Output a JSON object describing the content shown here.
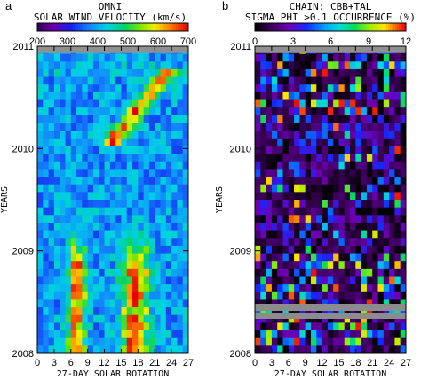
{
  "panels": [
    {
      "letter": "a",
      "title_line1": "OMNI",
      "title_line2": "SOLAR WIND VELOCITY (km/s)",
      "colorbar_ticks": [
        "200",
        "300",
        "400",
        "500",
        "600",
        "700"
      ],
      "ylabel": "YEARS",
      "xlabel": "27-DAY SOLAR ROTATION"
    },
    {
      "letter": "b",
      "title_line1": "CHAIN: CBB+TAL",
      "title_line2": "SIGMA PHI >0.1 OCCURRENCE (%)",
      "colorbar_ticks": [
        "0",
        "3",
        "6",
        "9",
        "12"
      ],
      "ylabel": "YEARS",
      "xlabel": "27-DAY SOLAR ROTATION"
    }
  ],
  "chart_data": [
    {
      "type": "heatmap",
      "title": "OMNI SOLAR WIND VELOCITY (km/s)",
      "xlabel": "27-DAY SOLAR ROTATION",
      "ylabel": "YEARS",
      "x_ticks": [
        "0",
        "3",
        "6",
        "9",
        "12",
        "15",
        "18",
        "21",
        "24",
        "27"
      ],
      "y_ticks": [
        "2008",
        "2009",
        "2010",
        "2011"
      ],
      "x_range": [
        0,
        27
      ],
      "y_range": [
        2008,
        2011
      ],
      "color_range": [
        200,
        700
      ],
      "colormap": "rainbow (purple-blue-cyan-green-yellow-red)",
      "pattern": "mostly 300-450 km/s; high-speed streams (>550 km/s) at days 6-8 and 15-20 in early 2008, fading in mid 2008, and a stream drifting from day ~14 to day ~23 in mid to late 2010"
    },
    {
      "type": "heatmap",
      "title": "CHAIN: CBB+TAL SIGMA PHI >0.1 OCCURRENCE (%)",
      "xlabel": "27-DAY SOLAR ROTATION",
      "ylabel": "YEARS",
      "x_ticks": [
        "0",
        "3",
        "6",
        "9",
        "12",
        "15",
        "18",
        "21",
        "24",
        "27"
      ],
      "y_ticks": [
        "2008",
        "2009",
        "2010",
        "2011"
      ],
      "x_range": [
        0,
        27
      ],
      "y_range": [
        2008,
        2011
      ],
      "color_range": [
        0,
        12
      ],
      "colormap": "rainbow (black-purple-blue-cyan-green-yellow-red)",
      "pattern": "mostly 0-3 %; scattered higher values (6-12 %) in 2008 and late 2010; two data gaps (grey) in mid 2008"
    }
  ]
}
